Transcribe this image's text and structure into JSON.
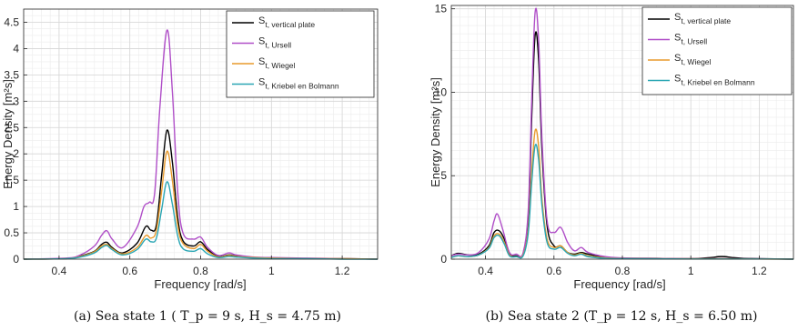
{
  "chart_data": [
    {
      "type": "line",
      "caption": "(a) Sea state 1 ( T_p = 9 s, H_s = 4.75 m)",
      "xlabel": "Frequency [rad/s]",
      "ylabel": "Energy Density [m²s]",
      "xlim": [
        0.3,
        1.3
      ],
      "ylim": [
        0,
        4.75
      ],
      "xticks": [
        "0.4",
        "0.6",
        "0.8",
        "1",
        "1.2"
      ],
      "yticks": [
        "0",
        "0.5",
        "1",
        "1.5",
        "2",
        "2.5",
        "3",
        "3.5",
        "4",
        "4.5"
      ],
      "grid": "major and minor",
      "legend_position": "top-right",
      "series": [
        {
          "name": "S t, vertical plate",
          "sub": "t, vertical plate",
          "color": "#000000",
          "x": [
            0.3,
            0.42,
            0.46,
            0.5,
            0.52,
            0.535,
            0.55,
            0.58,
            0.62,
            0.645,
            0.66,
            0.675,
            0.69,
            0.705,
            0.72,
            0.735,
            0.75,
            0.78,
            0.8,
            0.82,
            0.85,
            0.88,
            0.9,
            0.95,
            1.0,
            1.1,
            1.2,
            1.3
          ],
          "y": [
            0,
            0.01,
            0.06,
            0.15,
            0.28,
            0.32,
            0.22,
            0.12,
            0.3,
            0.62,
            0.55,
            0.65,
            1.6,
            2.45,
            1.85,
            0.8,
            0.35,
            0.25,
            0.33,
            0.18,
            0.05,
            0.08,
            0.06,
            0.03,
            0.02,
            0.01,
            0.01,
            0
          ]
        },
        {
          "name": "S t, Ursell",
          "sub": "t, Ursell",
          "color": "#b04fc8",
          "x": [
            0.3,
            0.42,
            0.46,
            0.5,
            0.52,
            0.535,
            0.55,
            0.58,
            0.62,
            0.64,
            0.655,
            0.67,
            0.685,
            0.705,
            0.72,
            0.735,
            0.75,
            0.78,
            0.8,
            0.82,
            0.85,
            0.88,
            0.9,
            0.95,
            1.0,
            1.1,
            1.2,
            1.3
          ],
          "y": [
            0,
            0.02,
            0.08,
            0.25,
            0.45,
            0.54,
            0.38,
            0.22,
            0.6,
            1.0,
            1.08,
            1.25,
            2.9,
            4.35,
            3.2,
            1.3,
            0.5,
            0.38,
            0.42,
            0.22,
            0.07,
            0.12,
            0.08,
            0.04,
            0.03,
            0.02,
            0.01,
            0
          ]
        },
        {
          "name": "S t, Wiegel",
          "sub": "t, Wiegel",
          "color": "#e89a2c",
          "x": [
            0.3,
            0.42,
            0.46,
            0.5,
            0.52,
            0.535,
            0.55,
            0.58,
            0.62,
            0.645,
            0.66,
            0.675,
            0.69,
            0.705,
            0.72,
            0.735,
            0.75,
            0.78,
            0.8,
            0.82,
            0.85,
            0.88,
            0.9,
            0.95,
            1.0,
            1.1,
            1.2,
            1.3
          ],
          "y": [
            0,
            0.01,
            0.05,
            0.14,
            0.25,
            0.28,
            0.2,
            0.1,
            0.22,
            0.45,
            0.4,
            0.55,
            1.3,
            2.05,
            1.5,
            0.65,
            0.3,
            0.2,
            0.28,
            0.15,
            0.04,
            0.07,
            0.05,
            0.03,
            0.02,
            0.01,
            0.01,
            0
          ]
        },
        {
          "name": "S t, Kriebel en Bolmann",
          "sub": "t, Kriebel en Bolmann",
          "color": "#2aa6b4",
          "x": [
            0.3,
            0.42,
            0.46,
            0.5,
            0.52,
            0.535,
            0.55,
            0.58,
            0.62,
            0.645,
            0.66,
            0.675,
            0.69,
            0.705,
            0.72,
            0.735,
            0.75,
            0.78,
            0.8,
            0.82,
            0.85,
            0.88,
            0.9,
            0.95,
            1.0,
            1.1,
            1.2,
            1.3
          ],
          "y": [
            0,
            0.01,
            0.04,
            0.12,
            0.22,
            0.26,
            0.18,
            0.08,
            0.18,
            0.38,
            0.33,
            0.4,
            0.95,
            1.47,
            1.05,
            0.45,
            0.2,
            0.15,
            0.2,
            0.1,
            0.03,
            0.05,
            0.04,
            0.02,
            0.01,
            0.01,
            0,
            0
          ]
        }
      ]
    },
    {
      "type": "line",
      "caption": "(b) Sea state 2 (T_p = 12 s, H_s = 6.50 m)",
      "xlabel": "Frequency [rad/s]",
      "ylabel": "Energy Density [m²s]",
      "xlim": [
        0.3,
        1.3
      ],
      "ylim": [
        0,
        15.2
      ],
      "xticks": [
        "0.4",
        "0.6",
        "0.8",
        "1",
        "1.2"
      ],
      "yticks": [
        "0",
        "5",
        "10",
        "15"
      ],
      "grid": "major and minor",
      "legend_position": "top-right",
      "series": [
        {
          "name": "S t, vertical plate",
          "sub": "t, vertical plate",
          "color": "#000000",
          "x": [
            0.3,
            0.32,
            0.35,
            0.38,
            0.41,
            0.425,
            0.44,
            0.455,
            0.47,
            0.49,
            0.51,
            0.525,
            0.535,
            0.545,
            0.555,
            0.565,
            0.58,
            0.6,
            0.62,
            0.64,
            0.66,
            0.68,
            0.7,
            0.75,
            0.8,
            0.9,
            1.0,
            1.06,
            1.08,
            1.1,
            1.12,
            1.15,
            1.2,
            1.3
          ],
          "y": [
            0.2,
            0.35,
            0.25,
            0.3,
            0.8,
            1.6,
            1.7,
            1.2,
            0.3,
            0.2,
            0.3,
            2.5,
            8.5,
            13.4,
            12.0,
            6.5,
            2.0,
            0.8,
            0.8,
            0.4,
            0.3,
            0.4,
            0.3,
            0.1,
            0.05,
            0.05,
            0.03,
            0.1,
            0.15,
            0.15,
            0.1,
            0.05,
            0.03,
            0
          ]
        },
        {
          "name": "S t, Ursell",
          "sub": "t, Ursell",
          "color": "#b04fc8",
          "x": [
            0.3,
            0.32,
            0.35,
            0.38,
            0.41,
            0.425,
            0.435,
            0.45,
            0.47,
            0.49,
            0.51,
            0.525,
            0.535,
            0.545,
            0.555,
            0.565,
            0.58,
            0.6,
            0.62,
            0.64,
            0.66,
            0.68,
            0.7,
            0.75,
            0.8,
            0.9,
            1.0,
            1.1,
            1.2,
            1.3
          ],
          "y": [
            0.2,
            0.3,
            0.25,
            0.4,
            1.2,
            2.3,
            2.7,
            1.8,
            0.4,
            0.3,
            0.4,
            3.0,
            9.5,
            14.8,
            13.2,
            7.2,
            2.3,
            1.6,
            1.9,
            1.0,
            0.5,
            0.7,
            0.4,
            0.15,
            0.08,
            0.05,
            0.03,
            0.03,
            0.02,
            0
          ]
        },
        {
          "name": "S t, Wiegel",
          "sub": "t, Wiegel",
          "color": "#e89a2c",
          "x": [
            0.3,
            0.32,
            0.35,
            0.38,
            0.41,
            0.425,
            0.44,
            0.455,
            0.47,
            0.49,
            0.51,
            0.525,
            0.535,
            0.545,
            0.555,
            0.565,
            0.58,
            0.6,
            0.62,
            0.64,
            0.66,
            0.68,
            0.7,
            0.75,
            0.8,
            0.9,
            1.0,
            1.1,
            1.2,
            1.3
          ],
          "y": [
            0.1,
            0.2,
            0.15,
            0.25,
            0.7,
            1.4,
            1.5,
            1.0,
            0.25,
            0.15,
            0.25,
            1.8,
            5.2,
            7.7,
            6.8,
            3.6,
            1.2,
            0.7,
            0.8,
            0.4,
            0.25,
            0.35,
            0.2,
            0.08,
            0.04,
            0.03,
            0.02,
            0.02,
            0.01,
            0
          ]
        },
        {
          "name": "S t, Kriebel en Bolmann",
          "sub": "t, Kriebel en Bolmann",
          "color": "#2aa6b4",
          "x": [
            0.3,
            0.32,
            0.35,
            0.38,
            0.41,
            0.425,
            0.44,
            0.455,
            0.47,
            0.49,
            0.51,
            0.525,
            0.535,
            0.545,
            0.555,
            0.565,
            0.58,
            0.6,
            0.62,
            0.64,
            0.66,
            0.68,
            0.7,
            0.75,
            0.8,
            0.9,
            1.0,
            1.1,
            1.2,
            1.3
          ],
          "y": [
            0.1,
            0.2,
            0.15,
            0.25,
            0.65,
            1.3,
            1.4,
            0.9,
            0.2,
            0.15,
            0.2,
            1.6,
            4.6,
            6.8,
            6.0,
            3.2,
            1.0,
            0.6,
            0.7,
            0.35,
            0.2,
            0.3,
            0.15,
            0.05,
            0.03,
            0.02,
            0.01,
            0.01,
            0.01,
            0
          ]
        }
      ]
    }
  ]
}
